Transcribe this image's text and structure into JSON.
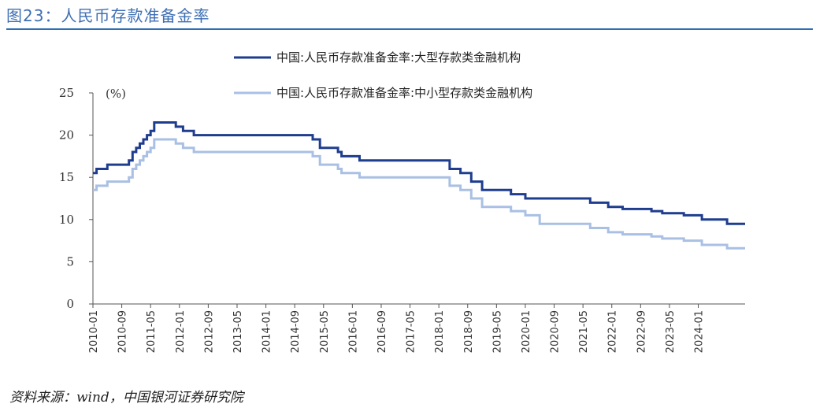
{
  "figure": {
    "title": "图23：人民币存款准备金率",
    "source": "资料来源：wind，中国银河证券研究院"
  },
  "chart_data": {
    "type": "line",
    "title": "",
    "xlabel": "",
    "ylabel": "(%)",
    "ylim": [
      0,
      25
    ],
    "yticks": [
      0,
      5,
      10,
      15,
      20,
      25
    ],
    "grid": false,
    "legend_position": "top",
    "xticks": [
      "2010-01",
      "2010-09",
      "2011-05",
      "2012-01",
      "2012-09",
      "2013-05",
      "2014-01",
      "2014-09",
      "2015-05",
      "2016-01",
      "2016-09",
      "2017-05",
      "2018-01",
      "2018-09",
      "2019-05",
      "2020-01",
      "2020-09",
      "2021-05",
      "2022-01",
      "2022-09",
      "2023-05",
      "2024-01"
    ],
    "x_end": "2025-02",
    "series": [
      {
        "name": "中国:人民币存款准备金率:大型存款类金融机构",
        "color": "#1f3d8f",
        "x": [
          "2010-01",
          "2010-02",
          "2010-05",
          "2010-11",
          "2010-12",
          "2011-01",
          "2011-02",
          "2011-03",
          "2011-04",
          "2011-05",
          "2011-06",
          "2011-12",
          "2012-02",
          "2012-05",
          "2015-02",
          "2015-04",
          "2015-09",
          "2015-10",
          "2016-03",
          "2018-04",
          "2018-07",
          "2018-10",
          "2019-01",
          "2019-09",
          "2020-01",
          "2021-07",
          "2021-12",
          "2022-04",
          "2022-12",
          "2023-03",
          "2023-09",
          "2024-02",
          "2024-09",
          "2025-02"
        ],
        "values": [
          15.5,
          16.0,
          16.5,
          17.0,
          18.0,
          18.5,
          19.0,
          19.5,
          20.0,
          20.5,
          21.5,
          21.0,
          20.5,
          20.0,
          19.5,
          18.5,
          18.0,
          17.5,
          17.0,
          16.0,
          15.5,
          14.5,
          13.5,
          13.0,
          12.5,
          12.0,
          11.5,
          11.25,
          11.0,
          10.75,
          10.5,
          10.0,
          9.5,
          9.5
        ]
      },
      {
        "name": "中国:人民币存款准备金率:中小型存款类金融机构",
        "color": "#a9c0e4",
        "x": [
          "2010-01",
          "2010-02",
          "2010-05",
          "2010-11",
          "2010-12",
          "2011-01",
          "2011-02",
          "2011-03",
          "2011-04",
          "2011-05",
          "2011-06",
          "2011-12",
          "2012-02",
          "2012-05",
          "2015-02",
          "2015-04",
          "2015-09",
          "2015-10",
          "2016-03",
          "2018-04",
          "2018-07",
          "2018-10",
          "2019-01",
          "2019-09",
          "2020-01",
          "2020-05",
          "2021-07",
          "2021-12",
          "2022-04",
          "2022-12",
          "2023-03",
          "2023-09",
          "2024-02",
          "2024-09",
          "2025-02"
        ],
        "values": [
          13.5,
          14.0,
          14.5,
          15.0,
          16.0,
          16.5,
          17.0,
          17.5,
          18.0,
          18.5,
          19.5,
          19.0,
          18.5,
          18.0,
          17.5,
          16.5,
          16.0,
          15.5,
          15.0,
          14.0,
          13.5,
          12.5,
          11.5,
          11.0,
          10.5,
          9.5,
          9.0,
          8.5,
          8.25,
          8.0,
          7.75,
          7.5,
          7.0,
          6.6,
          6.6
        ]
      }
    ]
  }
}
